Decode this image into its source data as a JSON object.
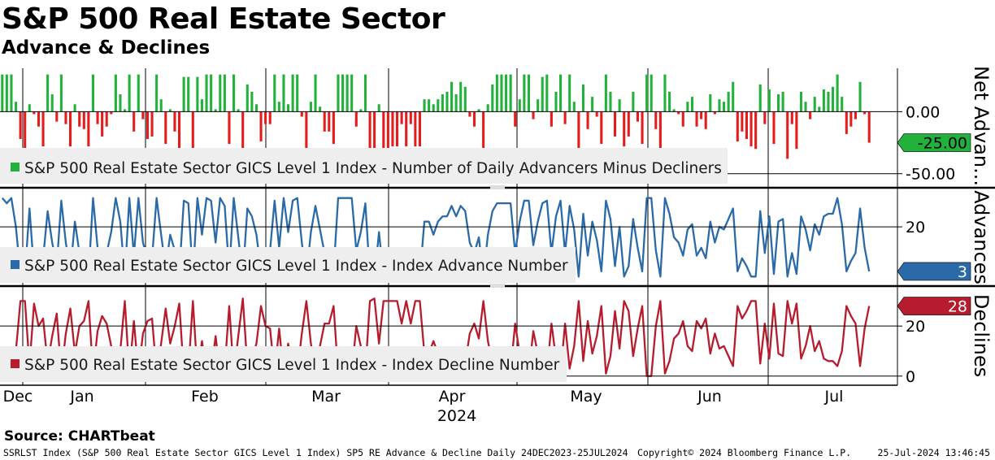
{
  "header": {
    "title": "S&P 500 Real Estate Sector",
    "subtitle": "Advance & Declines"
  },
  "source": "Source: CHARTbeat",
  "footer": {
    "left": "SSRLST Index (S&P 500 Real Estate Sector GICS Level 1 Index) SP5 RE Advance & Decline  Daily 24DEC2023-25JUL2024",
    "center": "Copyright© 2024 Bloomberg Finance L.P.",
    "right": "25-Jul-2024 13:46:45"
  },
  "colors": {
    "positive": "#22b13a",
    "negative": "#e61b1b",
    "advance": "#2b6aa8",
    "decline": "#b71c2e",
    "grid": "#000000"
  },
  "chart_data": {
    "type": "multi-panel time series",
    "x_axis": {
      "month_labels": [
        "Dec",
        "Jan",
        "Feb",
        "Mar",
        "Apr",
        "May",
        "Jun",
        "Jul"
      ],
      "year_label": "2024"
    },
    "panels": [
      {
        "id": "net",
        "type": "bar",
        "axis_title": "Net Advan...",
        "legend": "S&P 500 Real Estate Sector GICS Level 1 Index - Number of Daily Advancers Minus Decliners",
        "yticks": [
          0,
          -50
        ],
        "ytick_labels": [
          "0.00",
          "-50.00"
        ],
        "ylim": [
          -60,
          35
        ],
        "last_value": -25,
        "last_label": "-25.00",
        "values": [
          30,
          30,
          30,
          8,
          -22,
          -30,
          6,
          -2,
          -12,
          -28,
          30,
          14,
          -8,
          30,
          -10,
          -28,
          6,
          -12,
          -14,
          -28,
          30,
          -10,
          -20,
          -12,
          -2,
          30,
          14,
          2,
          30,
          -16,
          30,
          -6,
          -22,
          -20,
          30,
          10,
          -26,
          2,
          -16,
          -30,
          28,
          28,
          -30,
          28,
          10,
          30,
          30,
          2,
          30,
          30,
          -26,
          30,
          2,
          -32,
          22,
          16,
          6,
          -24,
          -10,
          -10,
          30,
          8,
          30,
          6,
          30,
          30,
          -4,
          -30,
          8,
          30,
          4,
          -16,
          -16,
          -26,
          30,
          30,
          30,
          30,
          -12,
          2,
          30,
          -30,
          -32,
          6,
          -40,
          -30,
          -28,
          -28,
          -10,
          -28,
          -10,
          -28,
          -28,
          10,
          10,
          6,
          10,
          14,
          16,
          24,
          14,
          24,
          20,
          -4,
          -12,
          2,
          -30,
          6,
          22,
          30,
          30,
          30,
          30,
          -12,
          10,
          30,
          30,
          -6,
          10,
          28,
          30,
          -12,
          16,
          30,
          -10,
          30,
          8,
          -30,
          22,
          -14,
          12,
          -4,
          -26,
          30,
          16,
          -20,
          10,
          -28,
          -20,
          16,
          -8,
          -26,
          30,
          30,
          -14,
          -30,
          30,
          16,
          2,
          -2,
          -12,
          8,
          12,
          -12,
          -6,
          -14,
          14,
          -2,
          10,
          8,
          16,
          24,
          -24,
          -16,
          -22,
          -28,
          -30,
          22,
          -10,
          18,
          -26,
          14,
          16,
          -38,
          -10,
          -30,
          16,
          8,
          -6,
          12,
          4,
          18,
          16,
          20,
          30,
          12,
          -18,
          -12,
          -6,
          24,
          -2,
          -25
        ]
      },
      {
        "id": "advances",
        "type": "line",
        "axis_title": "Advances",
        "legend": "S&P 500 Real Estate Sector GICS Level 1 Index - Index Advance Number",
        "yticks": [
          20
        ],
        "ytick_labels": [
          "20"
        ],
        "ylim": [
          -2,
          34
        ],
        "last_value": 3,
        "last_label": "3",
        "values": [
          31,
          29,
          31,
          20,
          2,
          2,
          27,
          3,
          11,
          8,
          26,
          14,
          5,
          30,
          14,
          3,
          22,
          10,
          8,
          1,
          31,
          12,
          6,
          10,
          18,
          31,
          22,
          1,
          31,
          9,
          31,
          14,
          8,
          8,
          31,
          17,
          4,
          17,
          11,
          2,
          30,
          29,
          1,
          31,
          17,
          31,
          30,
          14,
          31,
          28,
          3,
          31,
          16,
          1,
          27,
          24,
          17,
          3,
          11,
          11,
          30,
          12,
          31,
          18,
          30,
          31,
          14,
          1,
          18,
          28,
          19,
          10,
          10,
          3,
          31,
          31,
          31,
          31,
          11,
          18,
          29,
          1,
          0,
          18,
          1,
          1,
          1,
          1,
          10,
          1,
          10,
          1,
          1,
          22,
          22,
          17,
          22,
          24,
          24,
          28,
          24,
          28,
          26,
          14,
          10,
          16,
          1,
          17,
          26,
          29,
          29,
          29,
          29,
          10,
          22,
          30,
          30,
          13,
          22,
          29,
          30,
          10,
          24,
          30,
          10,
          28,
          19,
          1,
          25,
          9,
          22,
          15,
          3,
          30,
          23,
          5,
          20,
          1,
          5,
          23,
          12,
          3,
          31,
          31,
          11,
          1,
          31,
          25,
          16,
          14,
          9,
          19,
          21,
          9,
          12,
          8,
          22,
          14,
          20,
          19,
          23,
          27,
          3,
          8,
          5,
          1,
          1,
          26,
          10,
          24,
          2,
          22,
          23,
          1,
          10,
          2,
          24,
          19,
          11,
          21,
          17,
          24,
          25,
          25,
          31,
          21,
          3,
          7,
          10,
          27,
          12,
          3
        ]
      },
      {
        "id": "declines",
        "type": "line",
        "axis_title": "Declines",
        "legend": "S&P 500 Real Estate Sector GICS Level 1 Index - Index Decline Number",
        "yticks": [
          20,
          0
        ],
        "ytick_labels": [
          "20",
          "0"
        ],
        "ylim": [
          -3,
          35
        ],
        "last_value": 28,
        "last_label": "28",
        "values": [
          1,
          2,
          1,
          10,
          30,
          30,
          4,
          29,
          20,
          23,
          5,
          16,
          25,
          1,
          17,
          27,
          9,
          20,
          22,
          30,
          1,
          18,
          24,
          21,
          12,
          1,
          10,
          30,
          1,
          22,
          1,
          17,
          22,
          23,
          1,
          13,
          27,
          13,
          20,
          29,
          1,
          2,
          30,
          1,
          14,
          1,
          1,
          16,
          1,
          3,
          28,
          1,
          16,
          31,
          4,
          7,
          13,
          28,
          20,
          19,
          1,
          19,
          1,
          13,
          1,
          1,
          17,
          30,
          13,
          3,
          12,
          21,
          21,
          28,
          1,
          1,
          1,
          1,
          20,
          12,
          2,
          30,
          31,
          13,
          30,
          30,
          30,
          30,
          21,
          30,
          21,
          30,
          30,
          9,
          9,
          14,
          9,
          7,
          7,
          3,
          7,
          3,
          5,
          17,
          21,
          15,
          30,
          14,
          5,
          2,
          2,
          2,
          2,
          21,
          9,
          1,
          1,
          18,
          9,
          2,
          1,
          21,
          7,
          1,
          21,
          3,
          12,
          30,
          6,
          22,
          9,
          16,
          28,
          1,
          8,
          26,
          11,
          30,
          26,
          8,
          19,
          28,
          0,
          0,
          20,
          30,
          1,
          6,
          15,
          17,
          22,
          12,
          10,
          22,
          19,
          23,
          9,
          17,
          11,
          12,
          8,
          4,
          28,
          23,
          26,
          30,
          30,
          5,
          21,
          7,
          29,
          9,
          8,
          30,
          21,
          29,
          7,
          12,
          20,
          10,
          14,
          7,
          6,
          6,
          4,
          10,
          28,
          24,
          21,
          4,
          19,
          28
        ]
      }
    ]
  }
}
